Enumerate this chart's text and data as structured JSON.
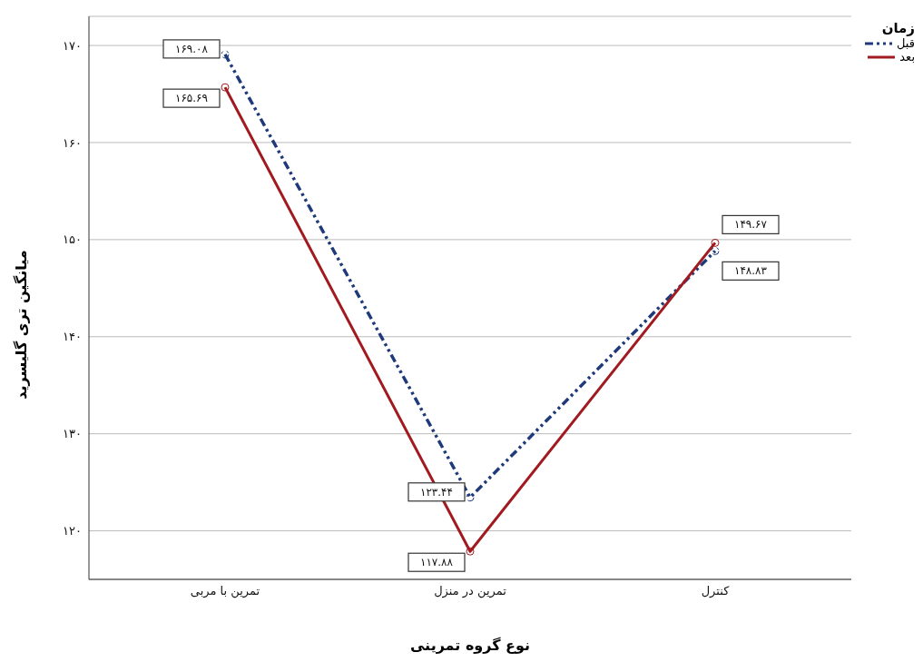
{
  "chart_data": {
    "type": "line",
    "xlabel": "نوع گروه تمرینی",
    "ylabel": "میانگین تری گلیسرید",
    "legend_title": "زمان",
    "categories": [
      "تمرین با مربی",
      "تمرین در منزل",
      "کنترل"
    ],
    "series": [
      {
        "name": "قبل",
        "color": "#1f3a7a",
        "line_style": "dashed",
        "values": [
          169.08,
          123.44,
          148.83
        ],
        "value_labels": [
          "۱۶۹.۰۸",
          "۱۲۳.۴۴",
          "۱۴۸.۸۳"
        ]
      },
      {
        "name": "بعد",
        "color": "#a11a1f",
        "line_style": "solid",
        "values": [
          165.69,
          117.88,
          149.67
        ],
        "value_labels": [
          "۱۶۵.۶۹",
          "۱۱۷.۸۸",
          "۱۴۹.۶۷"
        ]
      }
    ],
    "ylim": [
      115,
      173
    ],
    "yticks": [
      {
        "value": 120,
        "label": "۱۲۰"
      },
      {
        "value": 130,
        "label": "۱۳۰"
      },
      {
        "value": 140,
        "label": "۱۴۰"
      },
      {
        "value": 150,
        "label": "۱۵۰"
      },
      {
        "value": 160,
        "label": "۱۶۰"
      },
      {
        "value": 170,
        "label": "۱۷۰"
      }
    ],
    "grid": "y",
    "legend": "top right",
    "marker": "circle"
  }
}
